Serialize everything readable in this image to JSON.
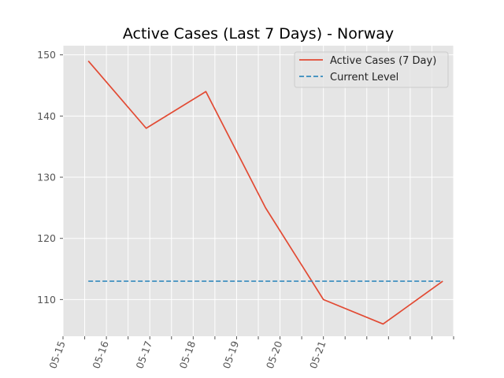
{
  "chart_data": {
    "type": "line",
    "title": "Active Cases (Last 7 Days) - Norway",
    "xlabel": "",
    "ylabel": "",
    "x_tick_labels": [
      "05-15",
      "05-16",
      "05-17",
      "05-18",
      "05-19",
      "05-20",
      "05-21"
    ],
    "ylim": [
      104,
      151.5
    ],
    "y_ticks": [
      110,
      120,
      130,
      140,
      150
    ],
    "grid": true,
    "legend_position": "top-right",
    "series": [
      {
        "name": "Active Cases (7 Day)",
        "style": "solid",
        "color": "#E24A33",
        "x": [
          "05-15 14:00",
          "05-16 22:00",
          "05-18 07:00",
          "05-19 16:00",
          "05-21 00:00",
          "05-22 09:00",
          "05-23 18:00"
        ],
        "values": [
          149,
          138,
          144,
          125,
          110,
          106,
          113
        ]
      },
      {
        "name": "Current Level",
        "style": "dashed",
        "color": "#348ABD",
        "x": [
          "05-15 14:00",
          "05-23 18:00"
        ],
        "values": [
          113,
          113
        ]
      }
    ]
  }
}
